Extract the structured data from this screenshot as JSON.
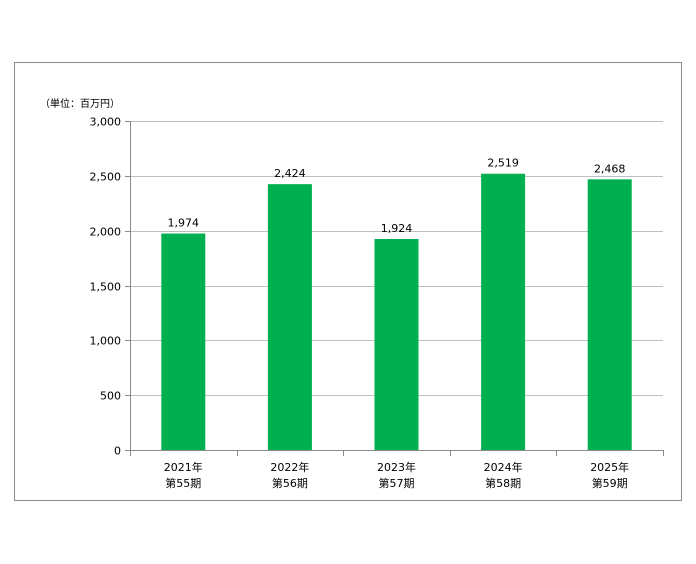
{
  "chart_data": {
    "type": "bar",
    "unit_label": "（単位：百万円）",
    "categories": [
      [
        "2021年",
        "第55期"
      ],
      [
        "2022年",
        "第56期"
      ],
      [
        "2023年",
        "第57期"
      ],
      [
        "2024年",
        "第58期"
      ],
      [
        "2025年",
        "第59期"
      ]
    ],
    "values": [
      1974,
      2424,
      1924,
      2519,
      2468
    ],
    "value_labels": [
      "1,974",
      "2,424",
      "1,924",
      "2,519",
      "2,468"
    ],
    "ylim": [
      0,
      3000
    ],
    "yticks": [
      0,
      500,
      1000,
      1500,
      2000,
      2500,
      3000
    ],
    "ytick_labels": [
      "0",
      "500",
      "1,000",
      "1,500",
      "2,000",
      "2,500",
      "3,000"
    ],
    "grid": true,
    "bar_color": "#00b050",
    "grid_color": "#bfbfbf",
    "axis_color": "#8a8a8a"
  }
}
